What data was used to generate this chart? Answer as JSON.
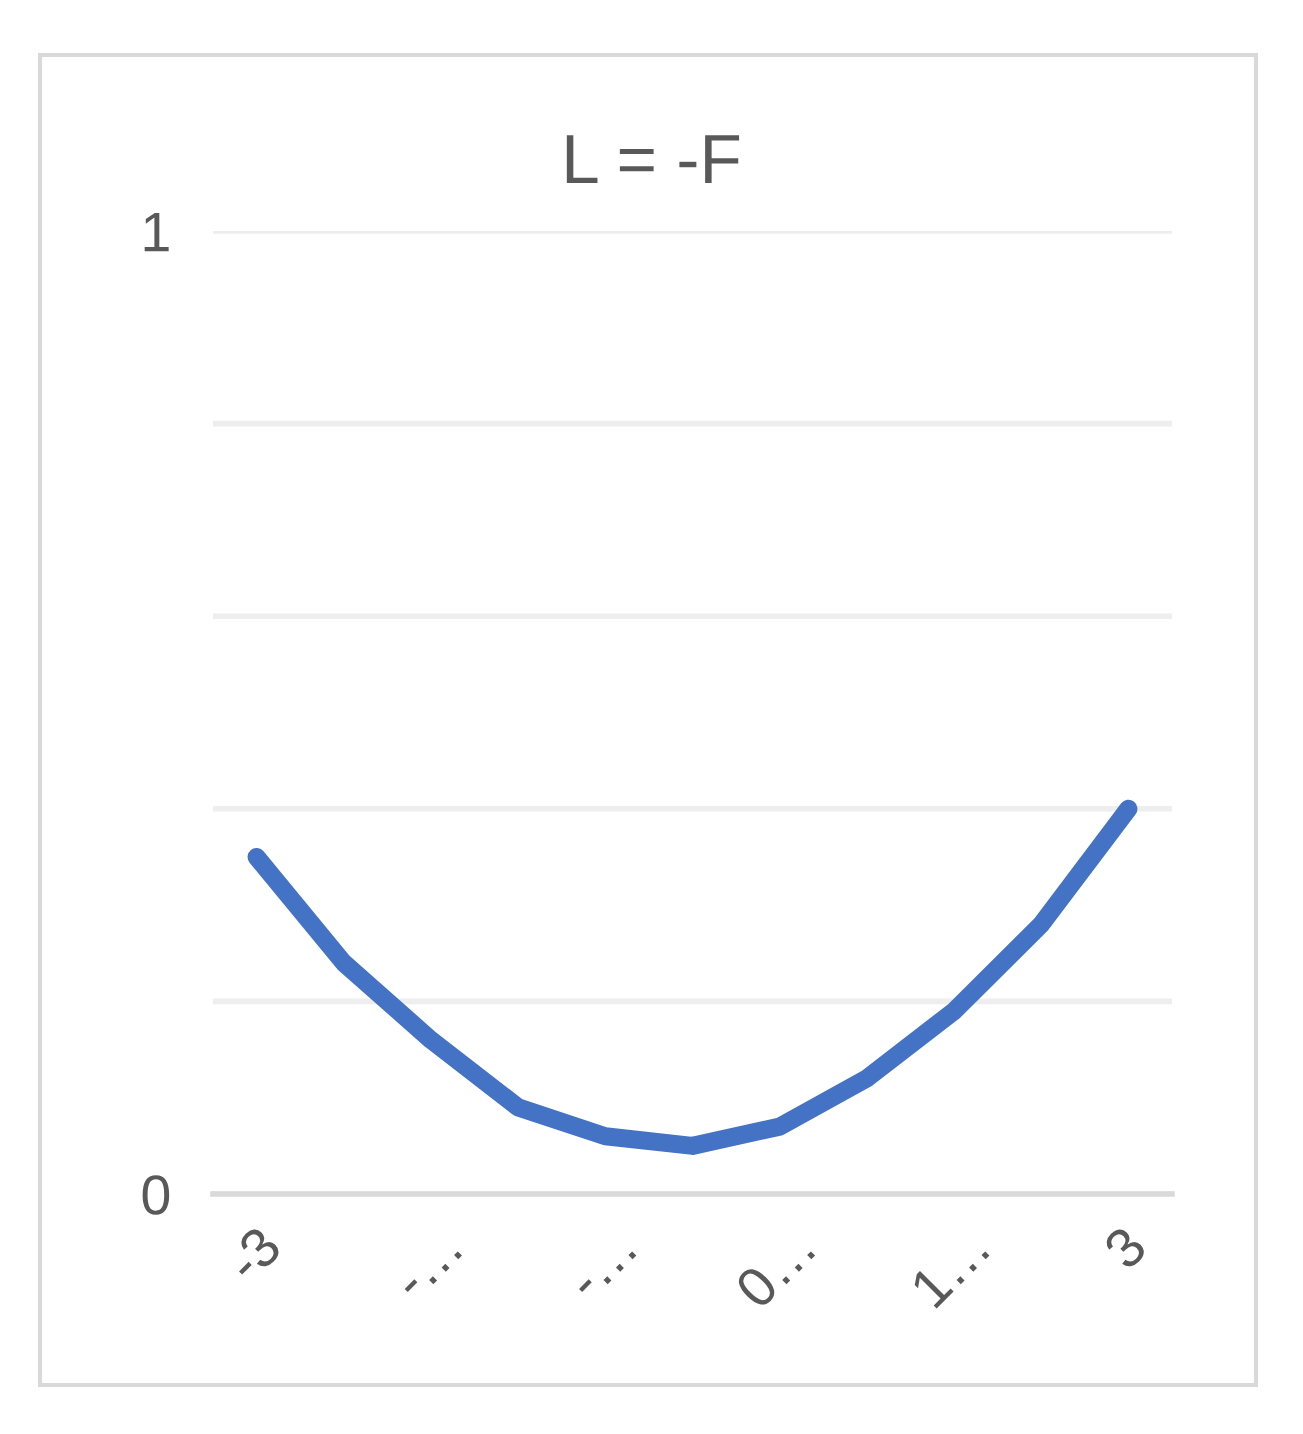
{
  "chart_data": {
    "type": "line",
    "title": "L = -F",
    "categories": [
      "-3",
      null,
      "-…",
      null,
      "-…",
      null,
      "0…",
      null,
      "1…",
      null,
      "3"
    ],
    "series": [
      {
        "color": "#4472c4",
        "values": [
          0.35,
          0.24,
          0.16,
          0.09,
          0.06,
          0.05,
          0.07,
          0.12,
          0.19,
          0.28,
          0.4
        ]
      }
    ],
    "ylim": [
      0,
      1
    ],
    "yticks": [
      0,
      {
        "value": 0.2,
        "label": null
      },
      {
        "value": 0.4,
        "label": null
      },
      {
        "value": 0.6,
        "label": null
      },
      {
        "value": 0.8,
        "label": null
      },
      1
    ],
    "grid": "y",
    "line_style": "solid"
  }
}
